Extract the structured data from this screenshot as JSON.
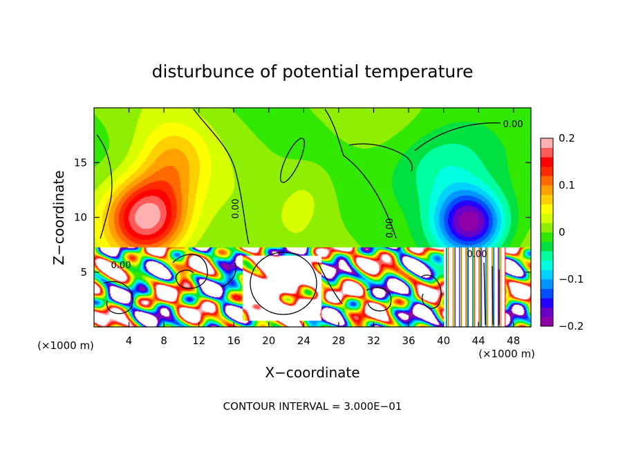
{
  "chart_data": {
    "type": "heatmap",
    "title": "disturbunce of potential temperature",
    "xlabel": "X−coordinate",
    "ylabel": "Z−coordinate",
    "x_unit_label": "(×1000 m)",
    "footer": "CONTOUR INTERVAL = 3.000E−01",
    "xlim": [
      0,
      50
    ],
    "ylim": [
      0,
      20
    ],
    "x_ticks": [
      4,
      8,
      12,
      16,
      20,
      24,
      28,
      32,
      36,
      40,
      44,
      48
    ],
    "y_ticks": [
      5,
      10,
      15
    ],
    "clim": [
      -0.2,
      0.2
    ],
    "colorbar_ticks": [
      {
        "value": 0.2,
        "label": "0.2"
      },
      {
        "value": 0.1,
        "label": "0.1"
      },
      {
        "value": 0,
        "label": "0"
      },
      {
        "value": -0.1,
        "label": "−0.1"
      },
      {
        "value": -0.2,
        "label": "−0.2"
      }
    ],
    "contour_labels": [
      "0.00",
      "0.00",
      "0.00",
      "0.00",
      "0.00"
    ],
    "colormap": [
      "#8e00a8",
      "#6b00c8",
      "#2400ff",
      "#0050ff",
      "#0096ff",
      "#00d2ff",
      "#00ffe0",
      "#00ffa0",
      "#00e040",
      "#30e800",
      "#90ee00",
      "#d8ff00",
      "#ffff00",
      "#ffd000",
      "#ffa000",
      "#ff6a00",
      "#ff2a00",
      "#ff0000",
      "#ff5a5a",
      "#ffb0b0"
    ],
    "upper_anomalies": [
      {
        "x": 6,
        "z": 10,
        "sx": 4.5,
        "sz": 3.5,
        "value": 0.2
      },
      {
        "x": 9,
        "z": 15,
        "sx": 4,
        "sz": 3.5,
        "value": 0.07
      },
      {
        "x": 24.5,
        "z": 12,
        "sx": 3,
        "sz": 3,
        "value": 0.02
      },
      {
        "x": 43,
        "z": 9.5,
        "sx": 4,
        "sz": 3,
        "value": -0.2
      },
      {
        "x": 40,
        "z": 14.5,
        "sx": 6,
        "sz": 4,
        "value": -0.07
      }
    ]
  }
}
